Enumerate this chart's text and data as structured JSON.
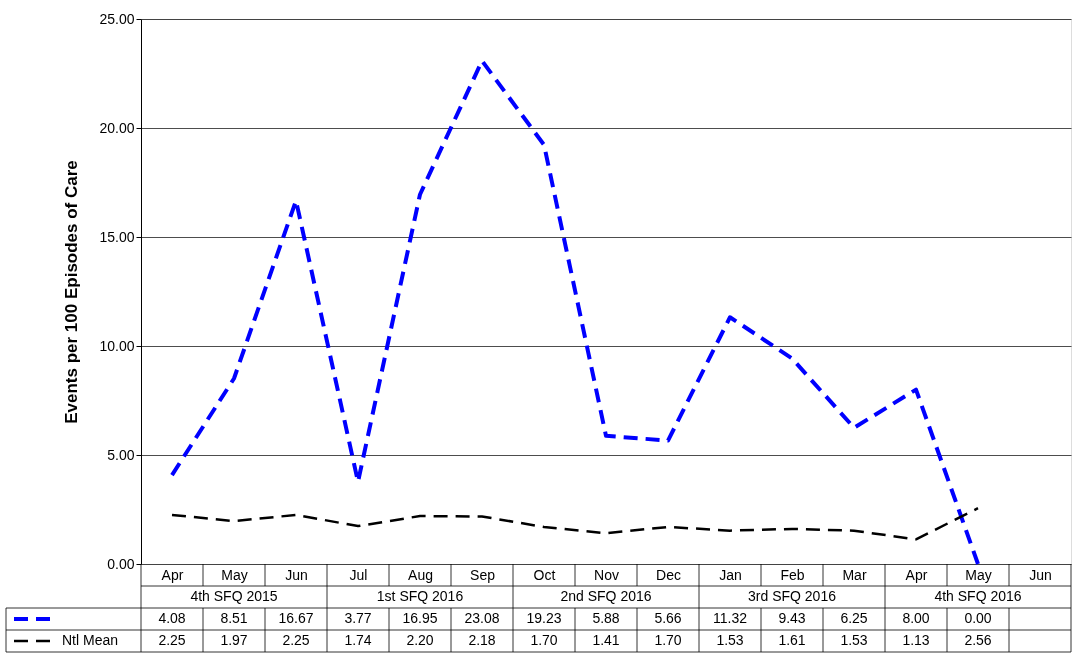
{
  "chart_data": {
    "type": "line",
    "ylabel": "Events per 100 Episodes of Care",
    "categories": [
      "Apr",
      "May",
      "Jun",
      "Jul",
      "Aug",
      "Sep",
      "Oct",
      "Nov",
      "Dec",
      "Jan",
      "Feb",
      "Mar",
      "Apr",
      "May",
      "Jun"
    ],
    "series": [
      {
        "color": "#0000ff",
        "line_style": "dashed",
        "values": [
          4.08,
          8.51,
          16.67,
          3.77,
          16.95,
          23.08,
          19.23,
          5.88,
          5.66,
          11.32,
          9.43,
          6.25,
          8.0,
          0.0,
          null
        ],
        "value_labels": [
          "4.08",
          "8.51",
          "16.67",
          "3.77",
          "16.95",
          "23.08",
          "19.23",
          "5.88",
          "5.66",
          "11.32",
          "9.43",
          "6.25",
          "8.00",
          "0.00",
          null
        ]
      },
      {
        "name": "Ntl Mean",
        "color": "#000000",
        "line_style": "dashed",
        "values": [
          2.25,
          1.97,
          2.25,
          1.74,
          2.2,
          2.18,
          1.7,
          1.41,
          1.7,
          1.53,
          1.61,
          1.53,
          1.13,
          2.56,
          null
        ],
        "value_labels": [
          "2.25",
          "1.97",
          "2.25",
          "1.74",
          "2.20",
          "2.18",
          "1.70",
          "1.41",
          "1.70",
          "1.53",
          "1.61",
          "1.53",
          "1.13",
          "2.56",
          null
        ]
      }
    ],
    "ylim": [
      0,
      25
    ],
    "yticks": [
      {
        "value": 0,
        "label": "0.00"
      },
      {
        "value": 5,
        "label": "5.00"
      },
      {
        "value": 10,
        "label": "10.00"
      },
      {
        "value": 15,
        "label": "15.00"
      },
      {
        "value": 20,
        "label": "20.00"
      },
      {
        "value": 25,
        "label": "25.00"
      }
    ],
    "grid": "y",
    "legend": "bottom",
    "annotations": [
      "4th SFQ 2015",
      "1st SFQ 2016",
      "2nd SFQ 2016",
      "3rd SFQ 2016",
      "4th SFQ 2016"
    ]
  }
}
